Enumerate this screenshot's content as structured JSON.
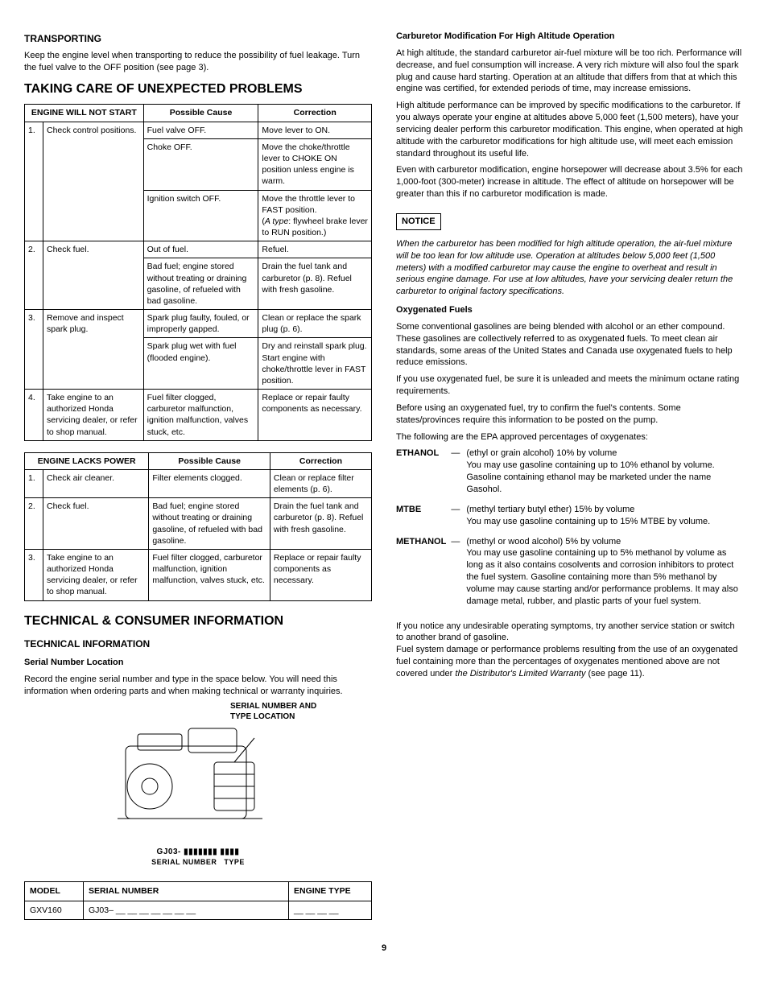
{
  "left": {
    "transporting_h": "TRANSPORTING",
    "transporting_p": "Keep the engine level when transporting to reduce the possibility of fuel leakage. Turn the fuel valve to the OFF position (see page 3).",
    "taking_care_h": "TAKING CARE OF UNEXPECTED PROBLEMS",
    "table1": {
      "h1": "ENGINE WILL NOT START",
      "h2": "Possible Cause",
      "h3": "Correction",
      "rows": [
        {
          "n": "1.",
          "label": "Check control positions.",
          "cause": "Fuel valve OFF.",
          "corr": "Move lever to ON."
        },
        {
          "n": "",
          "label": "",
          "cause": "Choke OFF.",
          "corr": "Move the choke/throttle lever to CHOKE ON position unless engine is warm."
        },
        {
          "n": "",
          "label": "",
          "cause": "Ignition switch OFF.",
          "corr": "Move the throttle lever to FAST position.\n(A type: flywheel brake lever to RUN position.)"
        },
        {
          "n": "2.",
          "label": "Check fuel.",
          "cause": "Out of fuel.",
          "corr": "Refuel."
        },
        {
          "n": "",
          "label": "",
          "cause": "Bad fuel; engine stored without treating or draining gasoline, of refueled with bad gasoline.",
          "corr": "Drain the fuel tank and carburetor (p. 8). Refuel with fresh gasoline."
        },
        {
          "n": "3.",
          "label": "Remove and inspect spark plug.",
          "cause": "Spark plug faulty, fouled, or improperly gapped.",
          "corr": "Clean or replace the spark plug (p. 6)."
        },
        {
          "n": "",
          "label": "",
          "cause": "Spark plug wet with fuel (flooded engine).",
          "corr": "Dry and reinstall spark plug. Start engine with choke/throttle lever in FAST position."
        },
        {
          "n": "4.",
          "label": "Take engine to an authorized Honda servicing dealer, or refer to shop manual.",
          "cause": "Fuel filter clogged, carburetor malfunction, ignition malfunction, valves stuck, etc.",
          "corr": "Replace or repair faulty components as necessary."
        }
      ]
    },
    "table2": {
      "h1": "ENGINE LACKS POWER",
      "h2": "Possible Cause",
      "h3": "Correction",
      "rows": [
        {
          "n": "1.",
          "label": "Check air cleaner.",
          "cause": "Filter elements clogged.",
          "corr": "Clean or replace filter elements (p. 6)."
        },
        {
          "n": "2.",
          "label": "Check fuel.",
          "cause": "Bad fuel; engine stored without treating or draining gasoline, of refueled with bad gasoline.",
          "corr": "Drain the fuel tank and carburetor (p. 8). Refuel with fresh gasoline."
        },
        {
          "n": "3.",
          "label": "Take engine to an authorized Honda servicing dealer, or refer to shop manual.",
          "cause": "Fuel filter clogged, carburetor malfunction, ignition malfunction, valves stuck, etc.",
          "corr": "Replace or repair faulty components as necessary."
        }
      ]
    },
    "tech_h": "TECHNICAL & CONSUMER INFORMATION",
    "tech_info_h": "TECHNICAL INFORMATION",
    "serial_h": "Serial Number Location",
    "serial_p": "Record the engine serial number and type in the space below. You will need this information when ordering parts and when making technical or warranty inquiries.",
    "diagram_label": "SERIAL NUMBER AND TYPE LOCATION",
    "serialnum_text": "GJ03- ▮▮▮▮▮▮▮   ▮▮▮▮",
    "serialnum_caption_a": "SERIAL NUMBER",
    "serialnum_caption_b": "TYPE",
    "serial_table": {
      "h1": "MODEL",
      "h2": "SERIAL NUMBER",
      "h3": "ENGINE TYPE",
      "model": "GXV160",
      "serial": "GJ03– __ __ __ __ __ __ __",
      "type": "__ __ __ __"
    }
  },
  "right": {
    "carb_h": "Carburetor Modification For High Altitude Operation",
    "carb_p1": "At high altitude, the standard carburetor air-fuel mixture will be too rich. Performance will decrease, and fuel consumption will increase. A very rich mixture will also foul the spark plug and cause hard starting. Operation at an altitude that differs from that at which this engine was certified, for extended periods of time, may increase emissions.",
    "carb_p2": "High altitude performance can be improved by specific modifications to the carburetor. If you always operate your engine at altitudes above 5,000 feet (1,500 meters), have your servicing dealer perform this carburetor modification. This engine, when operated at high altitude with the carburetor modifications for high altitude use, will meet each emission standard throughout its useful life.",
    "carb_p3": "Even with carburetor modification, engine horsepower will decrease about 3.5% for each 1,000-foot (300-meter) increase in altitude. The effect of altitude on horsepower will be greater than this if no carburetor modification is made.",
    "notice_label": "NOTICE",
    "notice_p": "When the carburetor has been modified for high altitude operation, the air-fuel mixture will be too lean for low altitude use. Operation at altitudes below 5,000 feet (1,500 meters) with a modified carburetor may cause the engine to overheat and result in serious engine damage. For use at low altitudes, have your servicing dealer return the carburetor to original factory specifications.",
    "oxy_h": "Oxygenated Fuels",
    "oxy_p1": "Some conventional gasolines are being blended with alcohol or an ether compound. These gasolines are collectively referred to as oxygenated fuels. To meet clean air standards, some areas of the United States and Canada use oxygenated fuels to help reduce emissions.",
    "oxy_p2": "If you use oxygenated fuel, be sure it is unleaded and meets the minimum octane rating requirements.",
    "oxy_p3": "Before using an oxygenated fuel, try to confirm the fuel's contents. Some states/provinces require this information to be posted on the pump.",
    "oxy_p4": "The following are the EPA approved percentages of oxygenates:",
    "fuels": [
      {
        "label": "ETHANOL",
        "desc": "(ethyl or grain alcohol) 10% by volume\nYou may use gasoline containing up to 10% ethanol by volume. Gasoline containing ethanol may be marketed under the name Gasohol."
      },
      {
        "label": "MTBE",
        "desc": "(methyl tertiary butyl ether) 15% by volume\nYou may use gasoline containing up to 15% MTBE by volume."
      },
      {
        "label": "METHANOL",
        "desc": "(methyl or wood alcohol) 5% by volume\nYou may use gasoline containing up to 5% methanol by volume as long as it also contains cosolvents and corrosion inhibitors to protect the fuel system. Gasoline containing more than 5% methanol by volume may cause starting and/or performance problems. It may also damage metal, rubber, and plastic parts of your fuel system."
      }
    ],
    "oxy_p5a": "If you notice any undesirable operating symptoms, try another service station or switch to another brand of gasoline.",
    "oxy_p5b_1": "Fuel system damage or performance problems resulting from the use of an oxygenated fuel containing more than the percentages of oxygenates mentioned above are not covered under ",
    "oxy_p5b_em": "the Distributor's Limited Warranty",
    "oxy_p5b_2": " (see page 11)."
  },
  "pagenum": "9"
}
